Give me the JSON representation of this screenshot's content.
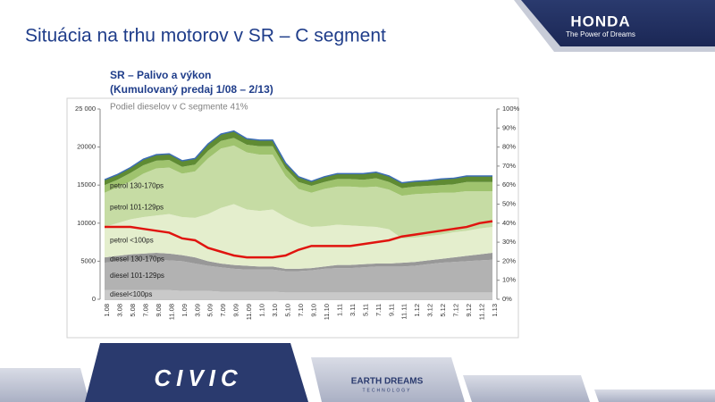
{
  "slide": {
    "title": "Situácia na trhu motorov v SR – C segment",
    "logo": "HONDA",
    "tagline": "The Power of Dreams",
    "footer_left": "CIVIC",
    "footer_mid": "EARTH DREAMS",
    "footer_mid_sub": "TECHNOLOGY"
  },
  "chart_data": {
    "type": "stacked-area",
    "title": "SR – Palivo a výkon",
    "subtitle": "(Kumulovaný predaj 1/08 – 2/13)",
    "annotation": "Podiel dieselov v C segmente 41%",
    "categories": [
      "1.08",
      "3.08",
      "5.08",
      "7.08",
      "9.08",
      "11.08",
      "1.09",
      "3.09",
      "5.09",
      "7.09",
      "9.09",
      "11.09",
      "1.10",
      "3.10",
      "5.10",
      "7.10",
      "9.10",
      "11.10",
      "1.11",
      "3.11",
      "5.11",
      "7.11",
      "9.11",
      "11.11",
      "1.12",
      "3.12",
      "5.12",
      "7.12",
      "9.12",
      "11.12",
      "1.13"
    ],
    "series": [
      {
        "name": "diesel<100ps",
        "color": "#c9c9c9",
        "values": [
          1200,
          1200,
          1200,
          1200,
          1200,
          1200,
          1100,
          1100,
          1100,
          1000,
          1000,
          1000,
          1000,
          1000,
          900,
          900,
          900,
          900,
          900,
          900,
          900,
          900,
          900,
          900,
          900,
          900,
          900,
          900,
          900,
          900,
          900
        ]
      },
      {
        "name": "diesel 101-129ps",
        "color": "#b2b2b2",
        "values": [
          3600,
          3800,
          3900,
          4000,
          4000,
          3900,
          3900,
          3600,
          3300,
          3200,
          3000,
          2900,
          2900,
          2900,
          2800,
          2800,
          2900,
          3100,
          3200,
          3200,
          3300,
          3400,
          3400,
          3400,
          3500,
          3700,
          3900,
          4000,
          4100,
          4200,
          4300
        ]
      },
      {
        "name": "diesel 130-170ps",
        "color": "#989898",
        "values": [
          700,
          700,
          800,
          800,
          900,
          900,
          800,
          800,
          600,
          500,
          500,
          500,
          400,
          400,
          300,
          300,
          300,
          300,
          400,
          400,
          400,
          400,
          400,
          500,
          500,
          500,
          500,
          600,
          700,
          800,
          900
        ]
      },
      {
        "name": "petrol <100ps",
        "color": "#e4eecd",
        "values": [
          4000,
          4300,
          4600,
          4800,
          4900,
          5200,
          5000,
          5200,
          6200,
          7300,
          8000,
          7400,
          7300,
          7500,
          6800,
          6000,
          5400,
          5300,
          5300,
          5200,
          5000,
          4800,
          4500,
          3200,
          3200,
          3200,
          3200,
          3300,
          3300,
          3400,
          3400
        ]
      },
      {
        "name": "petrol 101-129ps",
        "color": "#c6dca4",
        "values": [
          4500,
          4700,
          5000,
          5700,
          6200,
          6100,
          5700,
          6100,
          7300,
          7800,
          7700,
          7500,
          7400,
          7200,
          5400,
          4500,
          4500,
          4900,
          5000,
          5100,
          5100,
          5300,
          5200,
          5600,
          5700,
          5600,
          5500,
          5200,
          5200,
          4900,
          4700
        ]
      },
      {
        "name": "petrol 130-170ps",
        "color": "#9fc36e",
        "values": [
          1000,
          1000,
          1100,
          1100,
          1000,
          1000,
          900,
          900,
          1000,
          1000,
          1000,
          1000,
          1100,
          1100,
          1000,
          900,
          900,
          900,
          1000,
          1000,
          1000,
          1100,
          1000,
          1000,
          1000,
          1000,
          1000,
          1100,
          1200,
          1200,
          1200
        ]
      },
      {
        "color": "#5f8b33",
        "edge_color": "#3d6db5",
        "values": [
          700,
          700,
          700,
          800,
          800,
          800,
          800,
          800,
          900,
          900,
          900,
          800,
          800,
          800,
          700,
          700,
          600,
          700,
          700,
          700,
          800,
          800,
          800,
          700,
          700,
          700,
          800,
          800,
          800,
          800,
          800
        ]
      },
      {
        "color": "#e0140f",
        "axis": "y2",
        "values": [
          38,
          38,
          38,
          37,
          36,
          35,
          32,
          31,
          27,
          25,
          23,
          22,
          22,
          22,
          23,
          26,
          28,
          28,
          28,
          28,
          29,
          30,
          31,
          33,
          34,
          35,
          36,
          37,
          38,
          40,
          41
        ]
      }
    ],
    "ylim": [
      0,
      25000
    ],
    "yticks": [
      0,
      {
        "value": 5000,
        "label": "5000"
      },
      {
        "value": 10000,
        "label": "10000"
      },
      {
        "value": 15000,
        "label": "15000"
      },
      {
        "value": 20000,
        "label": "20000"
      },
      {
        "value": 25000,
        "label": "25 000"
      }
    ],
    "y2lim": [
      0,
      100
    ],
    "y2ticks": [
      {
        "value": 0,
        "label": "0%"
      },
      {
        "value": 10,
        "label": "10%"
      },
      {
        "value": 20,
        "label": "20%"
      },
      {
        "value": 30,
        "label": "30%"
      },
      {
        "value": 40,
        "label": "40%"
      },
      {
        "value": 50,
        "label": "50%"
      },
      {
        "value": 60,
        "label": "60%"
      },
      {
        "value": 70,
        "label": "70%"
      },
      {
        "value": 80,
        "label": "80%"
      },
      {
        "value": 90,
        "label": "90%"
      },
      {
        "value": 100,
        "label": "100%"
      }
    ]
  }
}
